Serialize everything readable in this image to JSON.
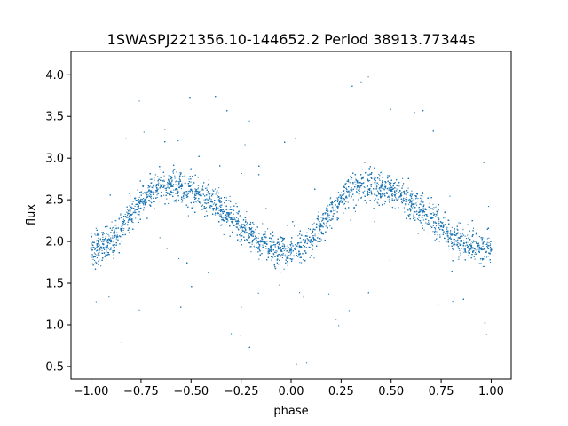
{
  "chart_data": {
    "type": "scatter",
    "title": "1SWASPJ221356.10-144652.2 Period 38913.77344s",
    "xlabel": "phase",
    "ylabel": "flux",
    "xlim": [
      -1.1,
      1.1
    ],
    "ylim": [
      0.35,
      4.28
    ],
    "xticks": [
      -1.0,
      -0.75,
      -0.5,
      -0.25,
      0.0,
      0.25,
      0.5,
      0.75,
      1.0
    ],
    "xtick_labels": [
      "−1.00",
      "−0.75",
      "−0.50",
      "−0.25",
      "0.00",
      "0.25",
      "0.50",
      "0.75",
      "1.00"
    ],
    "yticks": [
      0.5,
      1.0,
      1.5,
      2.0,
      2.5,
      3.0,
      3.5,
      4.0
    ],
    "ytick_labels": [
      "0.5",
      "1.0",
      "1.5",
      "2.0",
      "2.5",
      "3.0",
      "3.5",
      "4.0"
    ],
    "grid": false,
    "marker_color": "#1f77b4",
    "series": [
      {
        "x": [
          -1.0,
          -0.95,
          -0.9,
          -0.85,
          -0.8,
          -0.75,
          -0.7,
          -0.65,
          -0.6,
          -0.55,
          -0.5,
          -0.45,
          -0.4,
          -0.35,
          -0.3,
          -0.25,
          -0.2,
          -0.15,
          -0.1,
          -0.05,
          0.0,
          0.05,
          0.1,
          0.15,
          0.2,
          0.25,
          0.3,
          0.35,
          0.4,
          0.45,
          0.5,
          0.55,
          0.6,
          0.65,
          0.7,
          0.75,
          0.8,
          0.85,
          0.9,
          0.95,
          1.0
        ],
        "y": [
          1.92,
          1.93,
          2.0,
          2.15,
          2.32,
          2.48,
          2.6,
          2.66,
          2.68,
          2.66,
          2.62,
          2.55,
          2.48,
          2.38,
          2.28,
          2.18,
          2.08,
          2.0,
          1.93,
          1.89,
          1.9,
          1.93,
          2.02,
          2.18,
          2.36,
          2.52,
          2.62,
          2.67,
          2.68,
          2.66,
          2.62,
          2.55,
          2.48,
          2.38,
          2.28,
          2.18,
          2.08,
          2.0,
          1.95,
          1.92,
          1.9
        ]
      }
    ]
  }
}
